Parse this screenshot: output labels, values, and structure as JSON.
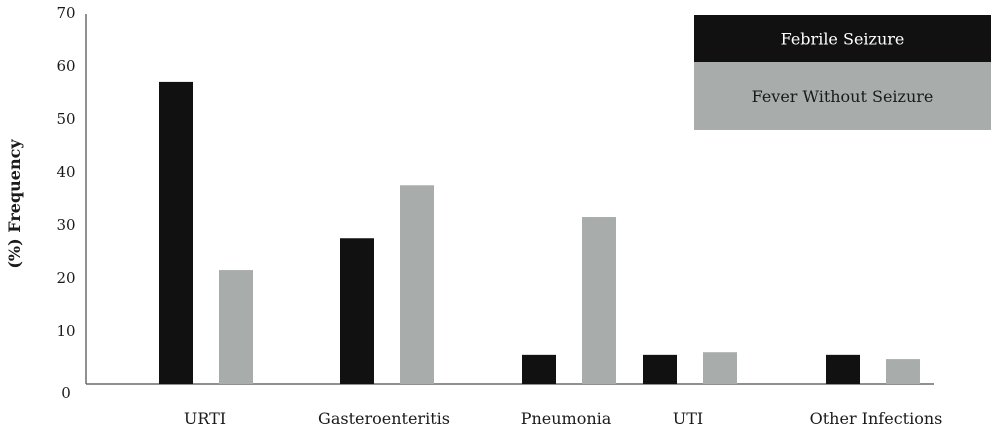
{
  "chart_data": {
    "type": "bar",
    "title": "",
    "xlabel": "",
    "ylabel": "(%) Frequency",
    "ylim": [
      0,
      70
    ],
    "yticks": [
      0,
      10,
      20,
      30,
      40,
      50,
      60,
      70
    ],
    "categories": [
      "URTI",
      "Gasteroenteritis",
      "Pneumonia",
      "UTI",
      "Other Infections"
    ],
    "series": [
      {
        "name": "Febrile Seizure",
        "color": "#111111",
        "values": [
          57,
          27.5,
          5.5,
          5.5,
          5.5
        ]
      },
      {
        "name": "Fever Without Seizure",
        "color": "#a8adac",
        "values": [
          21.5,
          37.5,
          31.5,
          6,
          4.7
        ]
      }
    ],
    "grid": false,
    "legend": "top-right"
  }
}
